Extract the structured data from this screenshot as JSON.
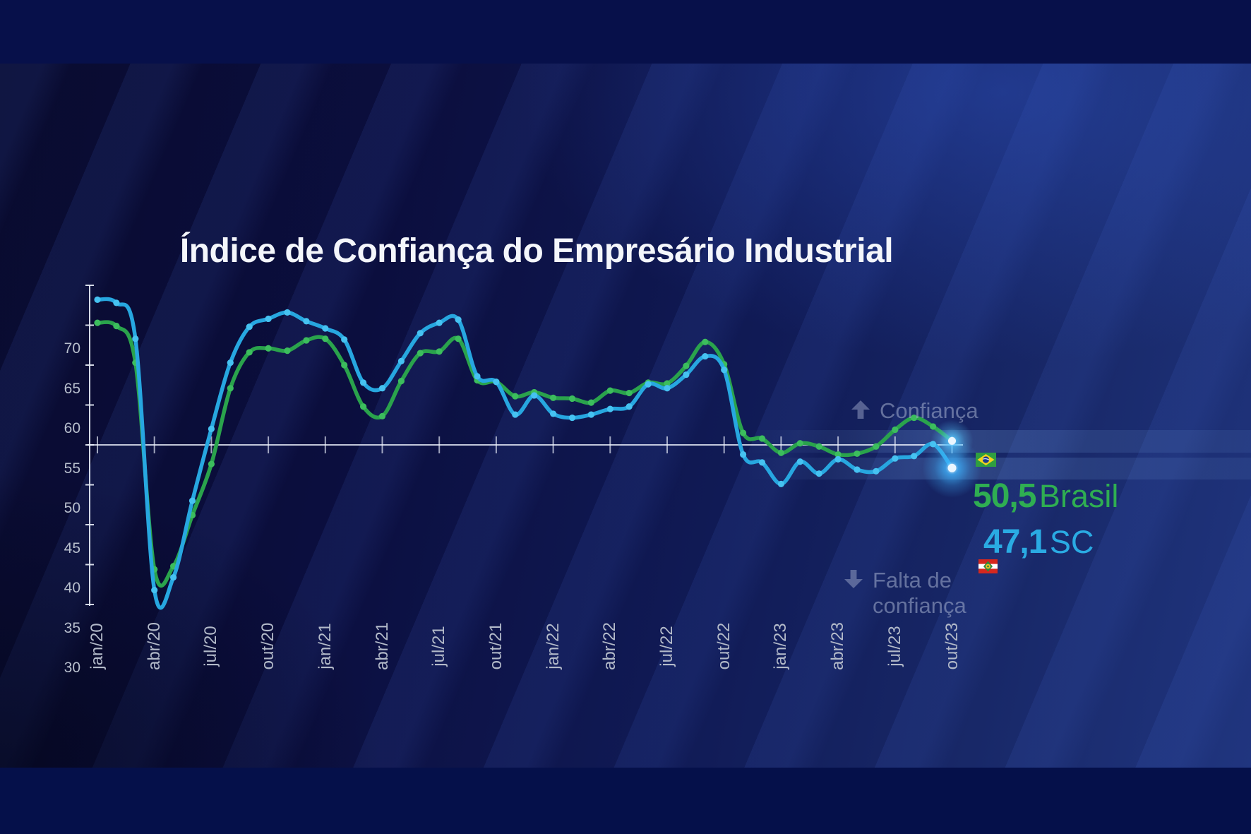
{
  "title": "Índice de Confiança do Empresário Industrial",
  "legend": {
    "confidence_label": "Confiança",
    "no_confidence_line1": "Falta de",
    "no_confidence_line2": "confiança"
  },
  "readout": {
    "brasil": {
      "value": "50,5",
      "name": "Brasil",
      "color": "#2fae52",
      "flag": "brazil-flag"
    },
    "sc": {
      "value": "47,1",
      "name": "SC",
      "color": "#2aabe3",
      "flag": "santa-catarina-flag"
    }
  },
  "chart_data": {
    "type": "line",
    "x": [
      "jan/20",
      "fev/20",
      "mar/20",
      "abr/20",
      "mai/20",
      "jun/20",
      "jul/20",
      "ago/20",
      "set/20",
      "out/20",
      "nov/20",
      "dez/20",
      "jan/21",
      "fev/21",
      "mar/21",
      "abr/21",
      "mai/21",
      "jun/21",
      "jul/21",
      "ago/21",
      "set/21",
      "out/21",
      "nov/21",
      "dez/21",
      "jan/22",
      "fev/22",
      "mar/22",
      "abr/22",
      "mai/22",
      "jun/22",
      "jul/22",
      "ago/22",
      "set/22",
      "out/22",
      "nov/22",
      "dez/22",
      "jan/23",
      "fev/23",
      "mar/23",
      "abr/23",
      "mai/23",
      "jun/23",
      "jul/23",
      "ago/23",
      "set/23",
      "out/23"
    ],
    "x_tick_labels": [
      "jan/20",
      "abr/20",
      "jul/20",
      "out/20",
      "jan/21",
      "abr/21",
      "jul/21",
      "out/21",
      "jan/22",
      "abr/22",
      "jul/22",
      "out/22",
      "jan/23",
      "abr/23",
      "jul/23",
      "out/23"
    ],
    "y_ticks": [
      30,
      35,
      40,
      45,
      50,
      55,
      60,
      65,
      70
    ],
    "ylim": [
      30,
      70
    ],
    "reference_line": 50,
    "grid": "reference-line-only",
    "legend_position": "right",
    "series": [
      {
        "name": "Brasil",
        "color": "#2aa34c",
        "dot_color": "#3cbd5d",
        "values": [
          65.3,
          64.9,
          60.3,
          34.4,
          34.8,
          41.2,
          47.6,
          57.1,
          61.6,
          62.1,
          61.8,
          63.1,
          63.3,
          60.0,
          54.8,
          53.6,
          58.0,
          61.5,
          61.7,
          63.3,
          58.1,
          57.9,
          56.1,
          56.6,
          55.9,
          55.8,
          55.3,
          56.8,
          56.5,
          57.8,
          57.7,
          59.9,
          62.9,
          60.1,
          51.5,
          50.8,
          49.0,
          50.2,
          49.8,
          48.8,
          48.9,
          49.8,
          51.9,
          53.4,
          52.3,
          50.5
        ]
      },
      {
        "name": "SC",
        "color": "#27a7e0",
        "dot_color": "#46c2f1",
        "values": [
          68.2,
          67.8,
          63.3,
          31.8,
          33.4,
          43.0,
          52.0,
          60.3,
          64.8,
          65.8,
          66.6,
          65.5,
          64.6,
          63.2,
          57.8,
          57.1,
          60.5,
          64.0,
          65.3,
          65.7,
          58.6,
          57.9,
          53.8,
          56.2,
          53.9,
          53.4,
          53.8,
          54.5,
          54.8,
          57.6,
          57.1,
          58.8,
          61.1,
          59.4,
          48.8,
          47.8,
          45.1,
          47.9,
          46.4,
          48.2,
          46.9,
          46.7,
          48.3,
          48.6,
          50.1,
          47.1
        ]
      }
    ],
    "end_labels": [
      {
        "series": "Brasil",
        "value": "50,5"
      },
      {
        "series": "SC",
        "value": "47,1"
      }
    ]
  }
}
